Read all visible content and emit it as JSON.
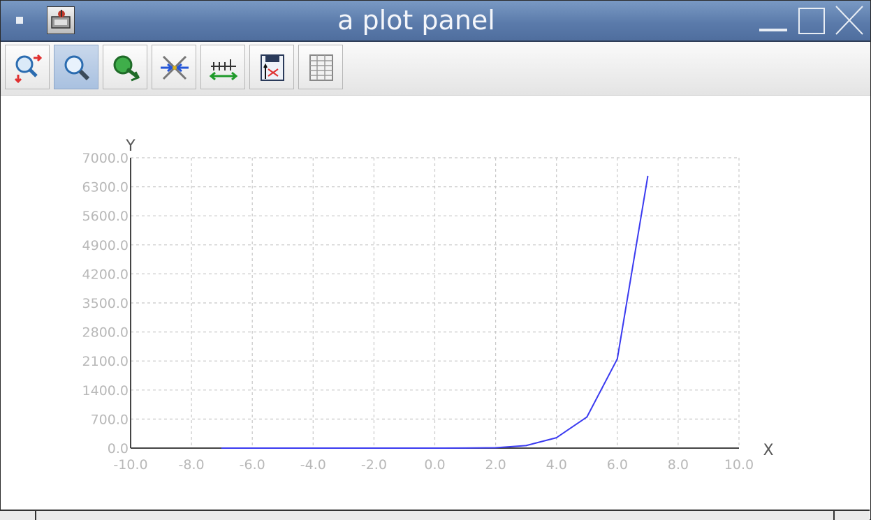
{
  "window": {
    "title": "a plot panel"
  },
  "toolbar": {
    "buttons": [
      {
        "name": "zoom-in-out-button",
        "icon": "zoom-reset-icon",
        "active": false
      },
      {
        "name": "zoom-button",
        "icon": "magnifier-icon",
        "active": true
      },
      {
        "name": "pan-button",
        "icon": "pan-icon",
        "active": false
      },
      {
        "name": "axis-settings-button",
        "icon": "axis-settings-icon",
        "active": false
      },
      {
        "name": "axis-scale-button",
        "icon": "axis-scale-icon",
        "active": false
      },
      {
        "name": "save-image-button",
        "icon": "save-plot-icon",
        "active": false
      },
      {
        "name": "data-table-button",
        "icon": "table-icon",
        "active": false
      }
    ]
  },
  "chart_data": {
    "type": "line",
    "title": "",
    "xlabel": "X",
    "ylabel": "Y",
    "xlim": [
      -10,
      10
    ],
    "ylim": [
      0,
      7000
    ],
    "xticks": [
      "-10.0",
      "-8.0",
      "-6.0",
      "-4.0",
      "-2.0",
      "0.0",
      "2.0",
      "4.0",
      "6.0",
      "8.0",
      "10.0"
    ],
    "yticks": [
      "0.0",
      "700.0",
      "1400.0",
      "2100.0",
      "2800.0",
      "3500.0",
      "4200.0",
      "4900.0",
      "5600.0",
      "6300.0",
      "7000.0"
    ],
    "grid": true,
    "series": [
      {
        "color": "#3a3af0",
        "x": [
          -7,
          -6,
          -5,
          -4,
          -3,
          -2,
          -1,
          0,
          1,
          2,
          3,
          4,
          5,
          6,
          7
        ],
        "y": [
          0,
          0,
          0,
          0,
          0,
          0,
          0,
          0,
          1,
          8,
          60,
          250,
          750,
          2150,
          6550
        ]
      }
    ]
  }
}
